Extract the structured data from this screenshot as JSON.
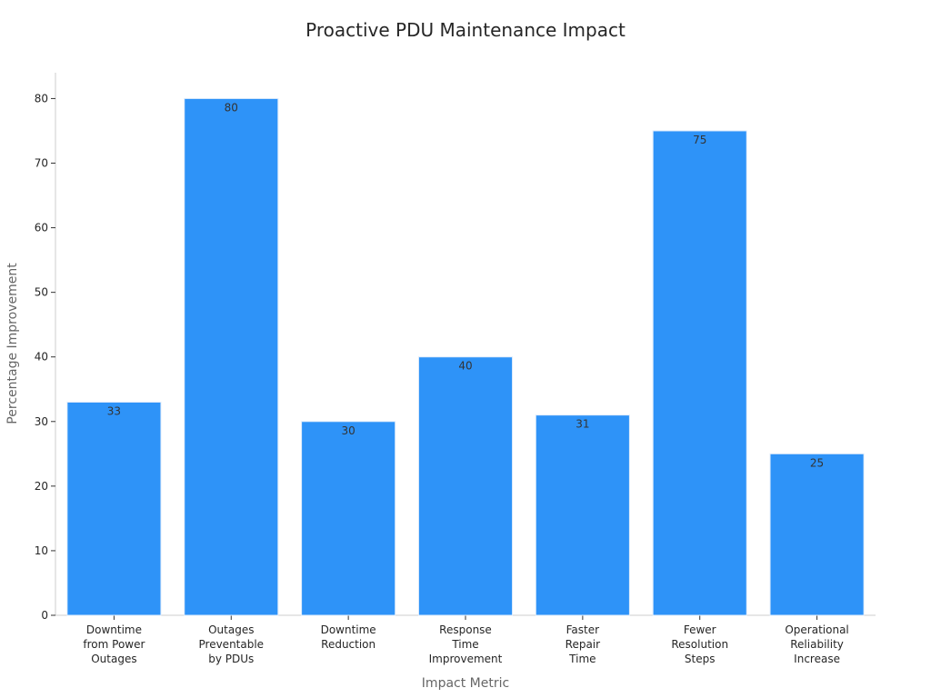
{
  "chart_data": {
    "type": "bar",
    "title": "Proactive PDU Maintenance Impact",
    "xlabel": "Impact Metric",
    "ylabel": "Percentage Improvement",
    "categories": [
      [
        "Downtime",
        "from Power",
        "Outages"
      ],
      [
        "Outages",
        "Preventable",
        "by PDUs"
      ],
      [
        "Downtime",
        "Reduction"
      ],
      [
        "Response",
        "Time",
        "Improvement"
      ],
      [
        "Faster",
        "Repair",
        "Time"
      ],
      [
        "Fewer",
        "Resolution",
        "Steps"
      ],
      [
        "Operational",
        "Reliability",
        "Increase"
      ]
    ],
    "values": [
      33,
      80,
      30,
      40,
      31,
      75,
      25
    ],
    "data_labels": [
      "33",
      "80",
      "30",
      "40",
      "31",
      "75",
      "25"
    ],
    "yticks": [
      0,
      10,
      20,
      30,
      40,
      50,
      60,
      70,
      80
    ],
    "ylim": [
      0,
      84
    ],
    "grid": false,
    "legend": "none",
    "bar_color": "#2e93f8"
  }
}
